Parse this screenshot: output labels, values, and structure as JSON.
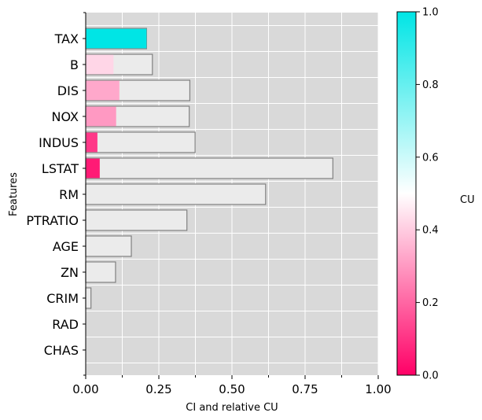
{
  "chart_data": {
    "type": "bar",
    "orientation": "horizontal",
    "xlabel": "CI and relative CU",
    "ylabel": "Features",
    "xlim": [
      0,
      1
    ],
    "xticks": [
      0.0,
      0.25,
      0.5,
      0.75,
      1.0
    ],
    "xtick_labels": [
      "0.00",
      "0.25",
      "0.50",
      "0.75",
      "1.00"
    ],
    "grid": true,
    "categories": [
      "TAX",
      "B",
      "DIS",
      "NOX",
      "INDUS",
      "LSTAT",
      "RM",
      "PTRATIO",
      "AGE",
      "ZN",
      "CRIM",
      "RAD",
      "CHAS"
    ],
    "series": [
      {
        "role": "CI",
        "values": [
          0.208,
          0.228,
          0.356,
          0.354,
          0.374,
          0.845,
          0.615,
          0.346,
          0.156,
          0.102,
          0.018,
          0.0,
          0.0
        ],
        "color": "#ebebeb",
        "edgecolor": "#808080"
      },
      {
        "role": "relative CU",
        "values": [
          0.208,
          0.095,
          0.115,
          0.104,
          0.04,
          0.048,
          0.0,
          0.0,
          0.0,
          0.0,
          0.0,
          0.0,
          0.0
        ],
        "cu": [
          1.0,
          0.42,
          0.33,
          0.3,
          0.11,
          0.05,
          0.0,
          0.0,
          0.0,
          0.0,
          0.0,
          0.0,
          0.0
        ]
      }
    ],
    "colorbar": {
      "label": "CU",
      "range": [
        0,
        1
      ],
      "ticks": [
        "0.0",
        "0.2",
        "0.4",
        "0.6",
        "0.8",
        "1.0"
      ],
      "stops": [
        "#ff0066",
        "#ffffff",
        "#00e5e5"
      ],
      "mid": 0.5
    },
    "background": "#d9d9d9"
  }
}
